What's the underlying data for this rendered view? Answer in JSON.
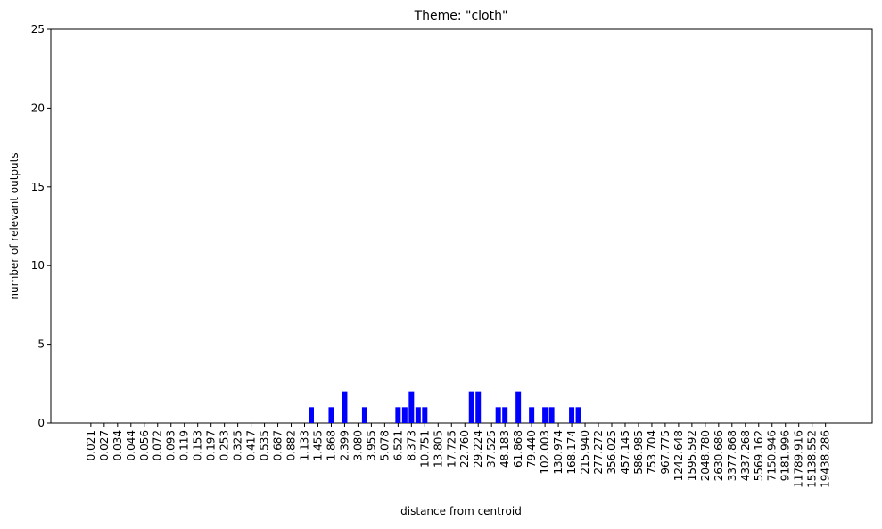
{
  "chart_data": {
    "type": "bar",
    "title": "Theme: \"cloth\"",
    "x_label": "distance from centroid",
    "y_label": "number of relevant outputs",
    "color": "#0000ff",
    "ylim": [
      0,
      25
    ],
    "yticks": [
      0,
      5,
      10,
      15,
      20,
      25
    ],
    "grid": false,
    "categories": [
      "0.021",
      null,
      "0.027",
      null,
      "0.034",
      null,
      "0.044",
      null,
      "0.056",
      null,
      "0.072",
      null,
      "0.093",
      null,
      "0.119",
      null,
      "0.153",
      null,
      "0.197",
      null,
      "0.253",
      null,
      "0.325",
      null,
      "0.417",
      null,
      "0.535",
      null,
      "0.687",
      null,
      "0.882",
      null,
      "1.133",
      null,
      "1.455",
      null,
      "1.868",
      null,
      "2.399",
      null,
      "3.080",
      null,
      "3.955",
      null,
      "5.078",
      null,
      "6.521",
      null,
      "8.373",
      null,
      "10.751",
      null,
      "13.805",
      null,
      "17.725",
      null,
      "22.760",
      null,
      "29.224",
      null,
      "37.525",
      null,
      "48.183",
      null,
      "61.868",
      null,
      "79.440",
      null,
      "102.003",
      null,
      "130.974",
      null,
      "168.174",
      null,
      "215.940",
      null,
      "277.272",
      null,
      "356.025",
      null,
      "457.145",
      null,
      "586.985",
      null,
      "753.704",
      null,
      "967.775",
      null,
      "1242.648",
      null,
      "1595.592",
      null,
      "2048.780",
      null,
      "2630.686",
      null,
      "3377.868",
      null,
      "4337.268",
      null,
      "5569.162",
      null,
      "7150.946",
      null,
      "9181.996",
      null,
      "11789.916",
      null,
      "15138.552",
      null,
      "19438.286",
      null
    ],
    "values": [
      0,
      0,
      0,
      0,
      0,
      0,
      0,
      0,
      0,
      0,
      0,
      0,
      0,
      0,
      0,
      0,
      0,
      0,
      0,
      0,
      0,
      0,
      0,
      0,
      0,
      0,
      0,
      0,
      0,
      0,
      0,
      0,
      0,
      1,
      0,
      0,
      1,
      0,
      2,
      0,
      0,
      1,
      0,
      0,
      0,
      0,
      1,
      1,
      2,
      1,
      1,
      0,
      0,
      0,
      0,
      0,
      0,
      2,
      2,
      0,
      0,
      1,
      1,
      0,
      2,
      0,
      1,
      0,
      1,
      1,
      0,
      0,
      1,
      1,
      0,
      0,
      0,
      0,
      0,
      0,
      0,
      0,
      0,
      0,
      0,
      0,
      0,
      0,
      0,
      0,
      0,
      0,
      0,
      0,
      0,
      0,
      0,
      0,
      0,
      0,
      0,
      0,
      0,
      0,
      0,
      0,
      0,
      0,
      0,
      0,
      0,
      0
    ]
  }
}
